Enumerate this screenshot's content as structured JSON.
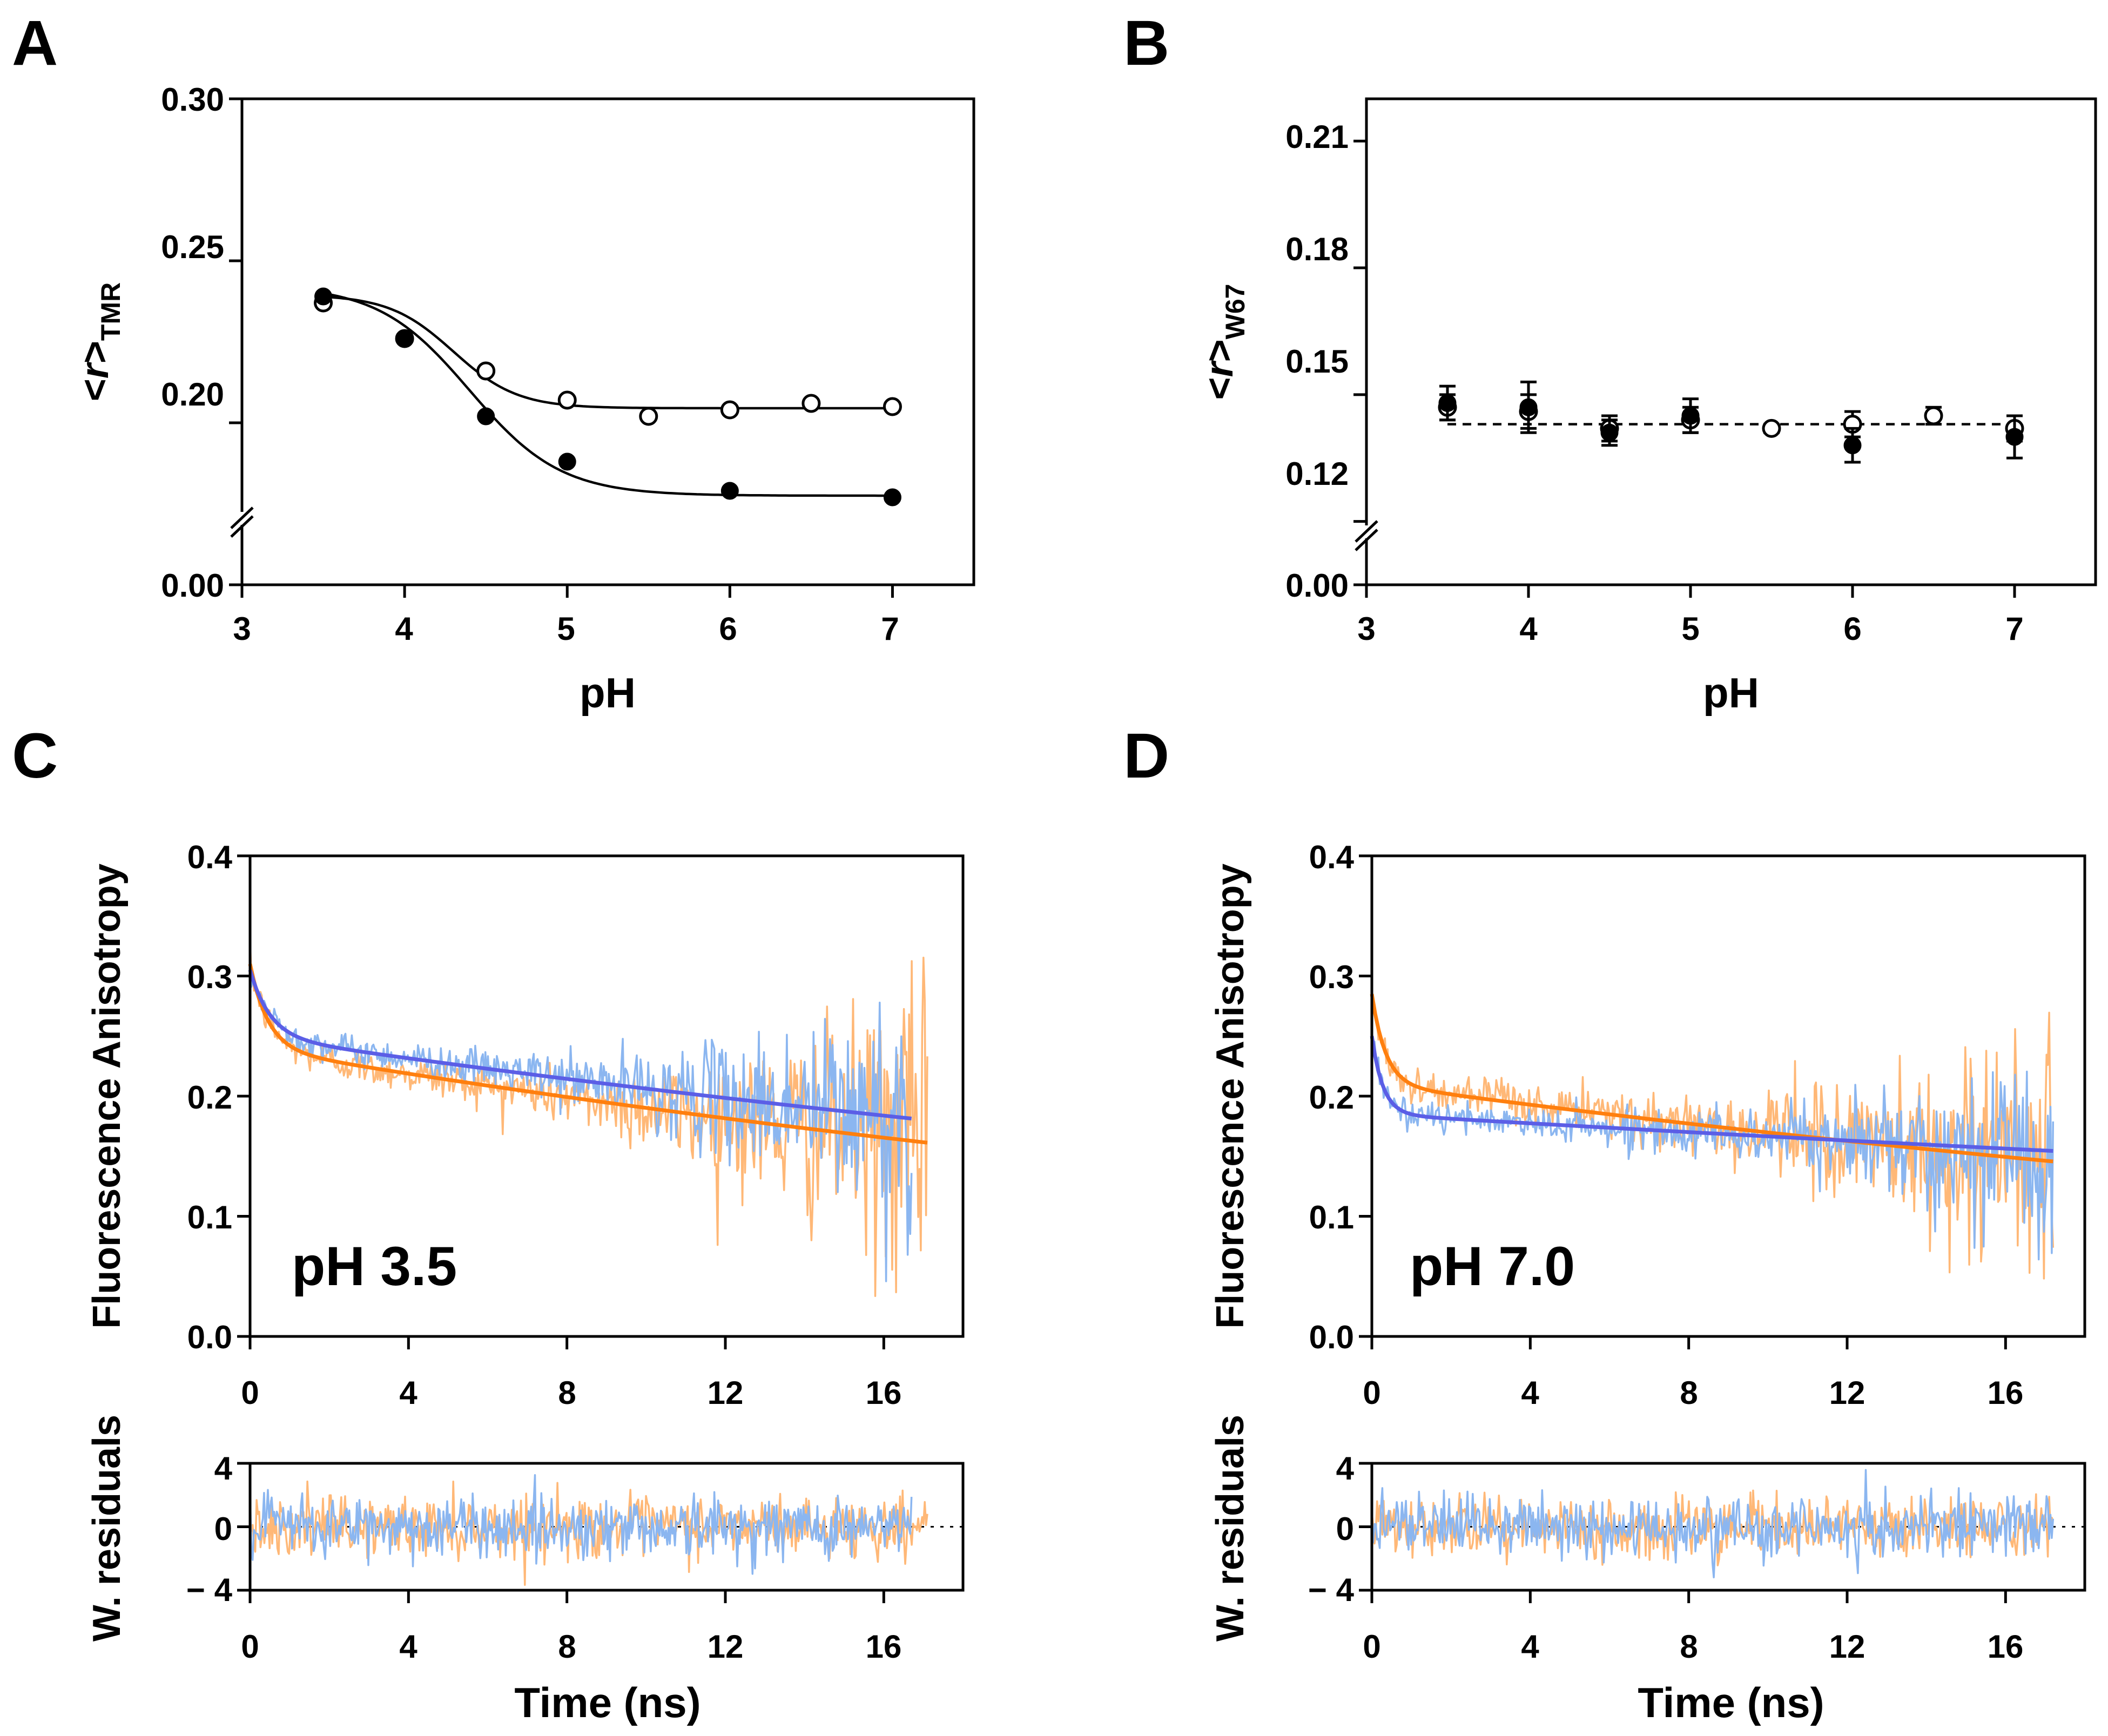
{
  "colors": {
    "orange": "#ff7f0e",
    "blue": "#5b5ee6",
    "orange_light": "#ffb877",
    "blue_light": "#8bb6f0"
  },
  "chart_data": [
    {
      "panel": "A",
      "type": "scatter",
      "xlabel": "pH",
      "ylabel": {
        "prefix": "<",
        "italic": "r",
        "suffix": ">",
        "sub": "TMR"
      },
      "xlim": [
        3,
        7.5
      ],
      "ylim": [
        0.15,
        0.3
      ],
      "xticks": [
        "3",
        "4",
        "5",
        "6",
        "7"
      ],
      "yticks": [
        "0.30",
        "0.25",
        "0.20",
        "0.00"
      ],
      "axis_break": true,
      "series": [
        {
          "name": "open",
          "marker": "open-circle",
          "x": [
            3.5,
            4.0,
            4.5,
            5.0,
            5.5,
            6.0,
            6.5,
            7.0
          ],
          "y": [
            0.237,
            0.226,
            0.216,
            0.207,
            0.202,
            0.204,
            0.206,
            0.205
          ],
          "fit": {
            "bottom": 0.2045,
            "top": 0.2395,
            "pKa": 4.3,
            "n": 2.2
          }
        },
        {
          "name": "filled",
          "marker": "filled-circle",
          "x": [
            3.5,
            4.0,
            4.5,
            5.0,
            6.0,
            7.0
          ],
          "y": [
            0.239,
            0.226,
            0.202,
            0.188,
            0.179,
            0.177
          ],
          "fit": {
            "bottom": 0.1775,
            "top": 0.2425,
            "pKa": 4.4,
            "n": 1.55
          }
        }
      ]
    },
    {
      "panel": "B",
      "type": "scatter",
      "xlabel": "pH",
      "ylabel": {
        "prefix": "<",
        "italic": "r",
        "suffix": ">",
        "sub": "W67"
      },
      "xlim": [
        3,
        7.5
      ],
      "ylim": [
        0.105,
        0.22
      ],
      "xticks": [
        "3",
        "4",
        "5",
        "6",
        "7"
      ],
      "yticks": [
        "0.21",
        "0.18",
        "0.15",
        "0.12",
        "0.00"
      ],
      "axis_break": true,
      "reference_line": 0.143,
      "series": [
        {
          "name": "open",
          "marker": "open-circle",
          "x": [
            3.5,
            4.0,
            4.5,
            5.0,
            5.5,
            6.0,
            6.5,
            7.0
          ],
          "y": [
            0.147,
            0.146,
            0.142,
            0.144,
            0.142,
            0.143,
            0.145,
            0.142
          ],
          "err": [
            0.003,
            0.004,
            0.003,
            0.003,
            0.001,
            0.003,
            0.002,
            0.003
          ]
        },
        {
          "name": "filled",
          "marker": "filled-circle",
          "x": [
            3.5,
            4.0,
            4.5,
            5.0,
            6.0,
            7.0
          ],
          "y": [
            0.148,
            0.147,
            0.141,
            0.145,
            0.138,
            0.14
          ],
          "err": [
            0.004,
            0.006,
            0.003,
            0.004,
            0.004,
            0.005
          ]
        }
      ]
    },
    {
      "panel": "C",
      "type": "line",
      "annotation": "pH 3.5",
      "ylabel": "Fluorescence Anisotropy",
      "xlim": [
        0,
        18
      ],
      "ylim": [
        0,
        0.4
      ],
      "xticks": [
        "0",
        "4",
        "8",
        "12",
        "16"
      ],
      "yticks": [
        "0.0",
        "0.1",
        "0.2",
        "0.3",
        "0.4"
      ],
      "residuals": {
        "ylabel": "W. residuals",
        "ylim": [
          -4,
          4
        ],
        "yticks": [
          "4",
          "0",
          "− 4"
        ],
        "xlabel": "Time (ns)"
      },
      "series": [
        {
          "name": "blue",
          "x_end": 16.7,
          "fit": {
            "A1": 0.055,
            "tau1": 0.5,
            "A2": 0.25,
            "tau2": 52
          },
          "noise_base": 0.006,
          "noise_growth": 0.05
        },
        {
          "name": "orange",
          "x_end": 17.1,
          "fit": {
            "A1": 0.07,
            "tau1": 0.45,
            "A2": 0.24,
            "tau2": 43
          },
          "noise_base": 0.007,
          "noise_growth": 0.06
        }
      ]
    },
    {
      "panel": "D",
      "type": "line",
      "annotation": "pH 7.0",
      "ylabel": "Fluorescence Anisotropy",
      "xlim": [
        0,
        18
      ],
      "ylim": [
        0,
        0.4
      ],
      "xticks": [
        "0",
        "4",
        "8",
        "12",
        "16"
      ],
      "yticks": [
        "0.0",
        "0.1",
        "0.2",
        "0.3",
        "0.4"
      ],
      "residuals": {
        "ylabel": "W. residuals",
        "ylim": [
          -4,
          4
        ],
        "yticks": [
          "4",
          "0",
          "− 4"
        ],
        "xlabel": "Time (ns)"
      },
      "series": [
        {
          "name": "blue",
          "x_end": 17.2,
          "fit": {
            "A1": 0.065,
            "tau1": 0.28,
            "A2": 0.185,
            "tau2": 95
          },
          "noise_base": 0.006,
          "noise_growth": 0.035
        },
        {
          "name": "orange",
          "x_end": 17.2,
          "fit": {
            "A1": 0.075,
            "tau1": 0.35,
            "A2": 0.21,
            "tau2": 47
          },
          "noise_base": 0.008,
          "noise_growth": 0.055
        }
      ]
    }
  ]
}
